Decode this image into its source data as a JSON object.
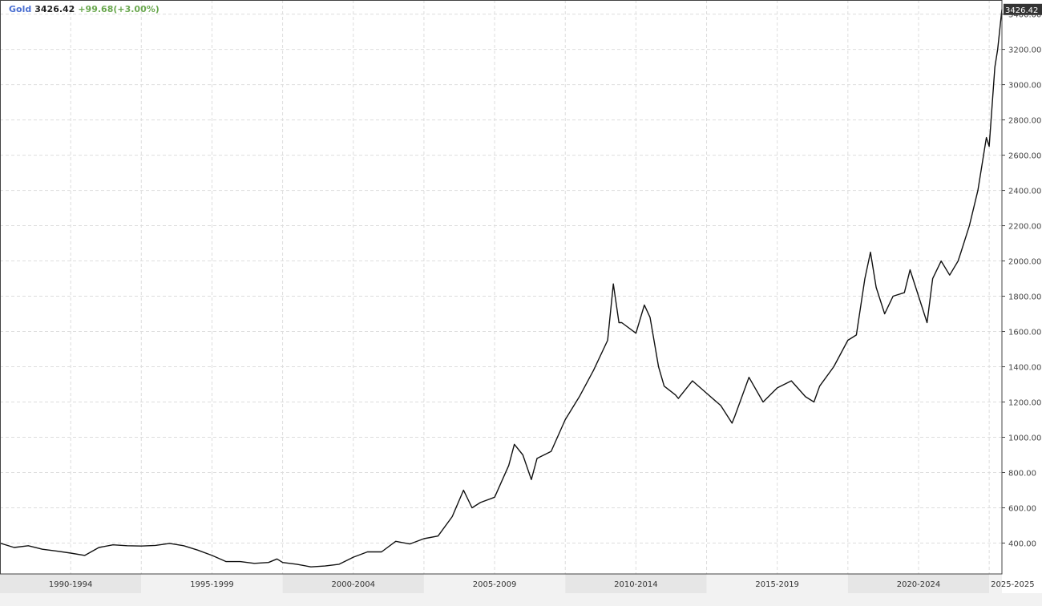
{
  "legend": {
    "symbol": "Gold",
    "price": "3426.42",
    "change": "+99.68(+3.00%)",
    "symbol_color": "#4a6fd1",
    "price_color": "#222222",
    "change_color": "#6aa84f"
  },
  "last_price_label": "3426.42",
  "chart_data": {
    "type": "line",
    "title": "",
    "xlabel": "",
    "ylabel": "",
    "ylim": [
      225,
      3480
    ],
    "xlim": [
      1990.0,
      2025.45
    ],
    "grid": true,
    "series": [
      {
        "name": "Gold",
        "color": "#111111",
        "x": [
          1990.0,
          1990.5,
          1991.0,
          1991.5,
          1992.0,
          1992.5,
          1993.0,
          1993.5,
          1994.0,
          1994.5,
          1995.0,
          1995.5,
          1996.0,
          1996.5,
          1997.0,
          1997.5,
          1998.0,
          1998.5,
          1999.0,
          1999.5,
          1999.8,
          2000.0,
          2000.5,
          2001.0,
          2001.5,
          2002.0,
          2002.5,
          2003.0,
          2003.5,
          2004.0,
          2004.5,
          2005.0,
          2005.5,
          2006.0,
          2006.4,
          2006.7,
          2007.0,
          2007.5,
          2008.0,
          2008.2,
          2008.5,
          2008.8,
          2009.0,
          2009.5,
          2010.0,
          2010.5,
          2011.0,
          2011.5,
          2011.7,
          2011.9,
          2012.0,
          2012.5,
          2012.8,
          2013.0,
          2013.3,
          2013.5,
          2013.9,
          2014.0,
          2014.5,
          2015.0,
          2015.5,
          2015.9,
          2016.0,
          2016.5,
          2017.0,
          2017.5,
          2018.0,
          2018.5,
          2018.8,
          2019.0,
          2019.5,
          2020.0,
          2020.3,
          2020.6,
          2020.8,
          2021.0,
          2021.3,
          2021.6,
          2022.0,
          2022.2,
          2022.5,
          2022.8,
          2023.0,
          2023.3,
          2023.6,
          2023.9,
          2024.0,
          2024.3,
          2024.6,
          2024.9,
          2025.0,
          2025.2,
          2025.3,
          2025.4,
          2025.45
        ],
        "values": [
          400,
          375,
          385,
          365,
          355,
          343,
          330,
          375,
          390,
          385,
          383,
          387,
          398,
          385,
          360,
          330,
          295,
          295,
          285,
          290,
          310,
          290,
          280,
          265,
          270,
          280,
          320,
          350,
          350,
          410,
          395,
          425,
          440,
          550,
          700,
          600,
          630,
          660,
          840,
          960,
          900,
          760,
          880,
          920,
          1100,
          1230,
          1380,
          1550,
          1870,
          1650,
          1650,
          1590,
          1750,
          1680,
          1400,
          1290,
          1240,
          1220,
          1320,
          1250,
          1180,
          1080,
          1120,
          1340,
          1200,
          1280,
          1320,
          1230,
          1200,
          1290,
          1400,
          1550,
          1580,
          1900,
          2050,
          1850,
          1700,
          1800,
          1820,
          1950,
          1800,
          1650,
          1900,
          2000,
          1920,
          2000,
          2050,
          2200,
          2400,
          2700,
          2650,
          3100,
          3200,
          3350,
          3426.42
        ]
      }
    ],
    "y_ticks": [
      400,
      600,
      800,
      1000,
      1200,
      1400,
      1600,
      1800,
      2000,
      2200,
      2400,
      2600,
      2800,
      3000,
      3200,
      3400
    ],
    "y_tick_labels": [
      "400.00",
      "600.00",
      "800.00",
      "1000.00",
      "1200.00",
      "1400.00",
      "1600.00",
      "1800.00",
      "2000.00",
      "2200.00",
      "2400.00",
      "2600.00",
      "2800.00",
      "3000.00",
      "3200.00",
      "3400.00"
    ],
    "x_periods": [
      {
        "label": "1990-1994",
        "start": 1990.0,
        "end": 1995.0,
        "shaded": true
      },
      {
        "label": "1995-1999",
        "start": 1995.0,
        "end": 2000.0,
        "shaded": false
      },
      {
        "label": "2000-2004",
        "start": 2000.0,
        "end": 2005.0,
        "shaded": true
      },
      {
        "label": "2005-2009",
        "start": 2005.0,
        "end": 2010.0,
        "shaded": false
      },
      {
        "label": "2010-2014",
        "start": 2010.0,
        "end": 2015.0,
        "shaded": true
      },
      {
        "label": "2015-2019",
        "start": 2015.0,
        "end": 2020.0,
        "shaded": false
      },
      {
        "label": "2020-2024",
        "start": 2020.0,
        "end": 2025.0,
        "shaded": true
      },
      {
        "label": "2025-2025",
        "start": 2025.0,
        "end": 2025.45,
        "shaded": false
      }
    ],
    "colors": {
      "grid": "#dddddd",
      "axis": "#444444",
      "band_shade": "#e6e6e6",
      "band_plain": "#f2f2f2",
      "last_price_bg": "#333333"
    }
  }
}
